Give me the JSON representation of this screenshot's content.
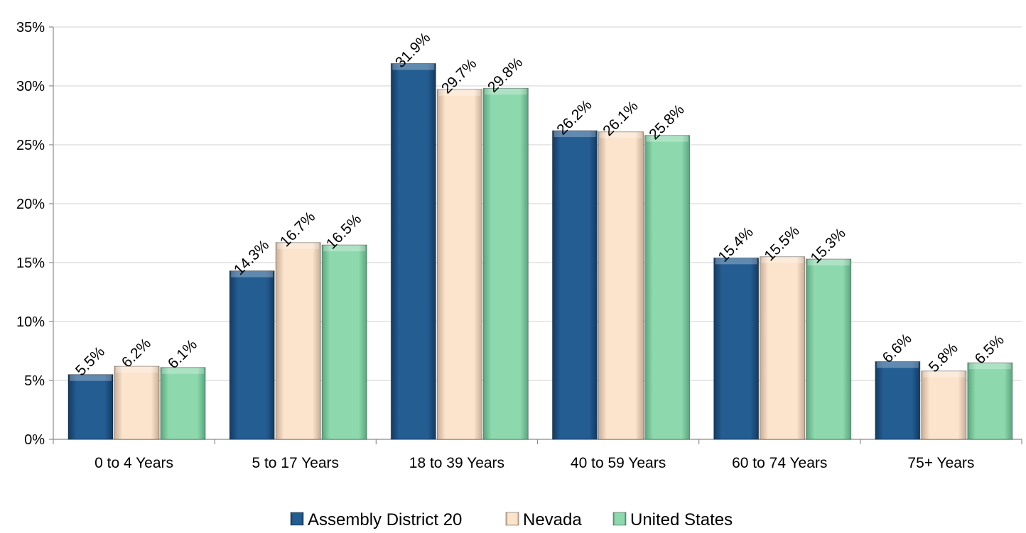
{
  "chart_data": {
    "type": "bar",
    "title": "",
    "xlabel": "",
    "ylabel": "",
    "ylim": [
      0,
      35
    ],
    "y_ticks": [
      0,
      5,
      10,
      15,
      20,
      25,
      30,
      35
    ],
    "y_tick_labels": [
      "0%",
      "5%",
      "10%",
      "15%",
      "20%",
      "25%",
      "30%",
      "35%"
    ],
    "grid": true,
    "legend_position": "bottom",
    "categories": [
      "0 to 4 Years",
      "5 to 17 Years",
      "18 to 39 Years",
      "40 to 59 Years",
      "60 to 74 Years",
      "75+ Years"
    ],
    "series": [
      {
        "name": "Assembly District 20",
        "color": "#245d92",
        "values": [
          5.5,
          14.3,
          31.9,
          26.2,
          15.4,
          6.6
        ],
        "labels": [
          "5.5%",
          "14.3%",
          "31.9%",
          "26.2%",
          "15.4%",
          "6.6%"
        ]
      },
      {
        "name": "Nevada",
        "color": "#fbe3cc",
        "values": [
          6.2,
          16.7,
          29.7,
          26.1,
          15.5,
          5.8
        ],
        "labels": [
          "6.2%",
          "16.7%",
          "29.7%",
          "26.1%",
          "15.5%",
          "5.8%"
        ]
      },
      {
        "name": "United States",
        "color": "#8ed8ad",
        "values": [
          6.1,
          16.5,
          29.8,
          25.8,
          15.3,
          6.5
        ],
        "labels": [
          "6.1%",
          "16.5%",
          "29.8%",
          "25.8%",
          "15.3%",
          "6.5%"
        ]
      }
    ]
  }
}
